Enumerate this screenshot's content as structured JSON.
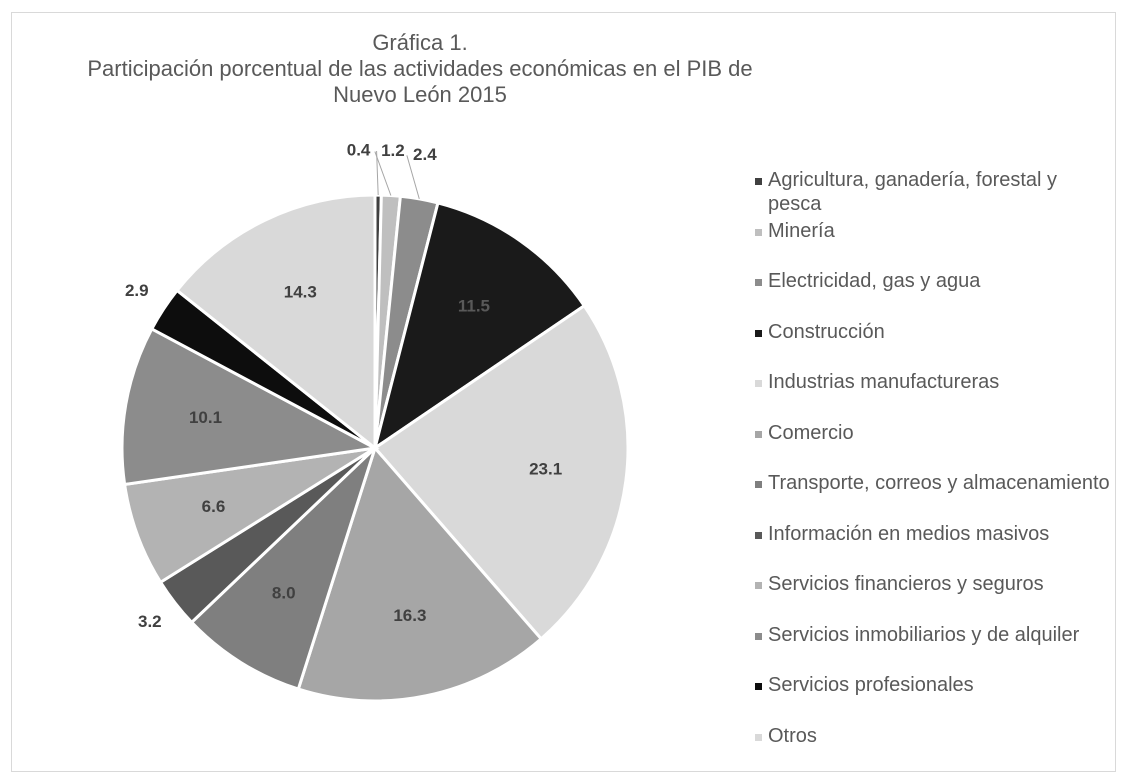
{
  "chart_data": {
    "type": "pie",
    "title": [
      "Gráfica 1.",
      "Participación porcentual de las actividades económicas en el PIB de",
      "Nuevo León 2015"
    ],
    "categories": [
      "Agricultura, ganadería, forestal y pesca",
      "Minería",
      "Electricidad, gas y agua",
      "Construcción",
      "Industrias manufactureras",
      "Comercio",
      "Transporte, correos y almacenamiento",
      "Información en medios masivos",
      "Servicios financieros y seguros",
      "Servicios inmobiliarios y de alquiler",
      "Servicios profesionales",
      "Otros"
    ],
    "values": [
      0.4,
      1.2,
      2.4,
      11.5,
      23.1,
      16.3,
      8.0,
      3.2,
      6.6,
      10.1,
      2.9,
      14.3
    ],
    "value_labels": [
      "0.4",
      "1.2",
      "2.4",
      "11.5",
      "23.1",
      "16.3",
      "8.0",
      "3.2",
      "6.6",
      "10.1",
      "2.9",
      "14.3"
    ],
    "colors": [
      "#404040",
      "#bfbfbf",
      "#8c8c8c",
      "#1a1a1a",
      "#d9d9d9",
      "#a6a6a6",
      "#7f7f7f",
      "#595959",
      "#b3b3b3",
      "#8c8c8c",
      "#0d0d0d",
      "#d9d9d9"
    ],
    "legend": "right"
  }
}
